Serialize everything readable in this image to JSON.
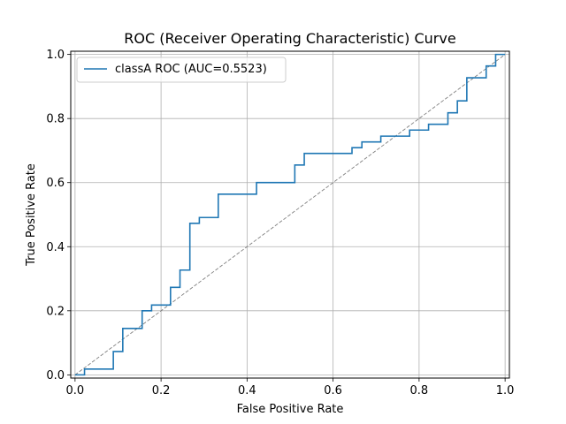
{
  "chart_data": {
    "type": "line",
    "title": "ROC (Receiver Operating Characteristic) Curve",
    "xlabel": "False Positive Rate",
    "ylabel": "True Positive Rate",
    "xlim": [
      -0.01,
      1.01
    ],
    "ylim": [
      -0.01,
      1.01
    ],
    "xticks": [
      0.0,
      0.2,
      0.4,
      0.6,
      0.8,
      1.0
    ],
    "yticks": [
      0.0,
      0.2,
      0.4,
      0.6,
      0.8,
      1.0
    ],
    "xtick_labels": [
      "0.0",
      "0.2",
      "0.4",
      "0.6",
      "0.8",
      "1.0"
    ],
    "ytick_labels": [
      "0.0",
      "0.2",
      "0.4",
      "0.6",
      "0.8",
      "1.0"
    ],
    "grid": true,
    "legend_position": "upper-left",
    "series": [
      {
        "name": "classA ROC (AUC=0.5523)",
        "color": "#1f77b4",
        "style": "steps",
        "points": [
          [
            0.0,
            0.0
          ],
          [
            0.022,
            0.0
          ],
          [
            0.022,
            0.018
          ],
          [
            0.089,
            0.018
          ],
          [
            0.089,
            0.073
          ],
          [
            0.111,
            0.073
          ],
          [
            0.111,
            0.145
          ],
          [
            0.156,
            0.145
          ],
          [
            0.156,
            0.2
          ],
          [
            0.178,
            0.2
          ],
          [
            0.178,
            0.218
          ],
          [
            0.222,
            0.218
          ],
          [
            0.222,
            0.273
          ],
          [
            0.244,
            0.273
          ],
          [
            0.244,
            0.327
          ],
          [
            0.267,
            0.327
          ],
          [
            0.267,
            0.473
          ],
          [
            0.289,
            0.473
          ],
          [
            0.289,
            0.491
          ],
          [
            0.333,
            0.491
          ],
          [
            0.333,
            0.564
          ],
          [
            0.422,
            0.564
          ],
          [
            0.422,
            0.6
          ],
          [
            0.511,
            0.6
          ],
          [
            0.511,
            0.655
          ],
          [
            0.533,
            0.655
          ],
          [
            0.533,
            0.691
          ],
          [
            0.644,
            0.691
          ],
          [
            0.644,
            0.709
          ],
          [
            0.667,
            0.709
          ],
          [
            0.667,
            0.727
          ],
          [
            0.711,
            0.727
          ],
          [
            0.711,
            0.745
          ],
          [
            0.778,
            0.745
          ],
          [
            0.778,
            0.764
          ],
          [
            0.822,
            0.764
          ],
          [
            0.822,
            0.782
          ],
          [
            0.867,
            0.782
          ],
          [
            0.867,
            0.818
          ],
          [
            0.889,
            0.818
          ],
          [
            0.889,
            0.855
          ],
          [
            0.911,
            0.855
          ],
          [
            0.911,
            0.927
          ],
          [
            0.956,
            0.927
          ],
          [
            0.956,
            0.964
          ],
          [
            0.978,
            0.964
          ],
          [
            0.978,
            1.0
          ],
          [
            1.0,
            1.0
          ]
        ]
      },
      {
        "name": "",
        "color": "#808080",
        "style": "dashed",
        "points": [
          [
            0,
            0
          ],
          [
            1,
            1
          ]
        ]
      }
    ]
  }
}
